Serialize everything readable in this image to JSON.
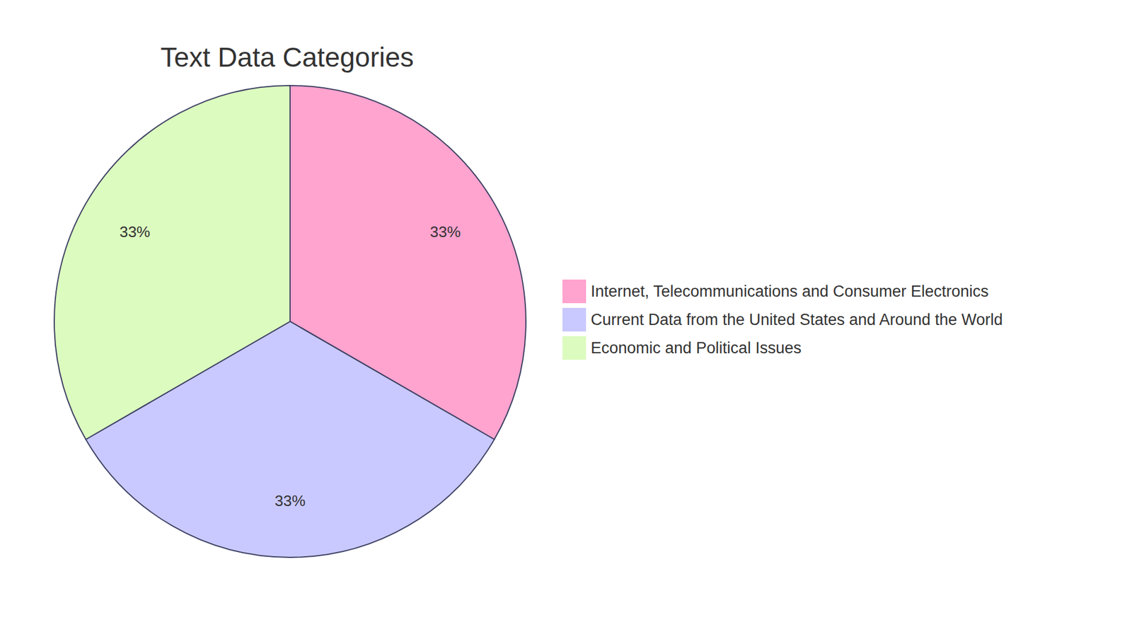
{
  "chart_data": {
    "type": "pie",
    "title": "Text Data Categories",
    "categories": [
      "Internet, Telecommunications and Consumer Electronics",
      "Current Data from the United States and Around the World",
      "Economic and Political Issues"
    ],
    "values": [
      33,
      33,
      33
    ],
    "value_labels": [
      "33%",
      "33%",
      "33%"
    ],
    "data_labels": true,
    "colors": [
      "#ffa3cf",
      "#c9c9ff",
      "#dcfbbf"
    ],
    "legend": "right"
  }
}
